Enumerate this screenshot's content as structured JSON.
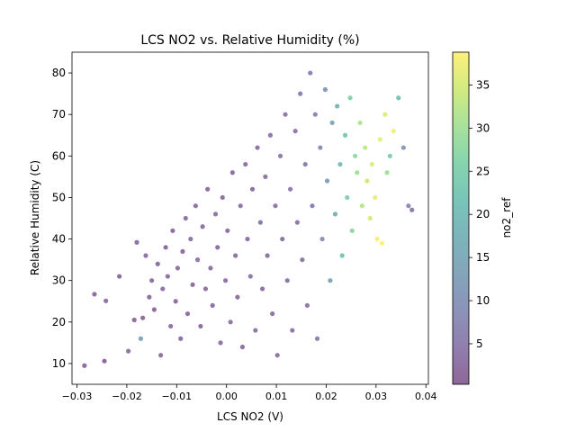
{
  "chart_data": {
    "type": "scatter",
    "title": "LCS NO2 vs. Relative Humidity (%)",
    "xlabel": "LCS NO2 (V)",
    "ylabel": "Relative Humidity (C)",
    "xlim": [
      -0.031,
      0.0405
    ],
    "ylim": [
      5,
      85
    ],
    "xticks": [
      -0.03,
      -0.02,
      -0.01,
      0.0,
      0.01,
      0.02,
      0.03,
      0.04
    ],
    "xtick_labels": [
      "−0.03",
      "−0.02",
      "−0.01",
      "0.00",
      "0.01",
      "0.02",
      "0.03",
      "0.04"
    ],
    "yticks": [
      10,
      20,
      30,
      40,
      50,
      60,
      70,
      80
    ],
    "ytick_labels": [
      "10",
      "20",
      "30",
      "40",
      "50",
      "60",
      "70",
      "80"
    ],
    "grid": false,
    "colormap": "viridis",
    "point_alpha": 0.6,
    "colorbar": {
      "label": "no2_ref",
      "range": [
        0.3,
        38.8
      ],
      "ticks": [
        5,
        10,
        15,
        20,
        25,
        30,
        35
      ],
      "tick_labels": [
        "5",
        "10",
        "15",
        "20",
        "25",
        "30",
        "35"
      ]
    },
    "series": [
      {
        "x": [
          -0.0285,
          -0.0265,
          -0.0245,
          -0.0242,
          -0.0215,
          -0.0197,
          -0.0185,
          -0.018,
          -0.0172,
          -0.0168,
          -0.0162,
          -0.0155,
          -0.015,
          -0.0145,
          -0.0138,
          -0.0132,
          -0.0128,
          -0.0122,
          -0.0118,
          -0.0112,
          -0.0108,
          -0.0102,
          -0.0098,
          -0.0092,
          -0.0088,
          -0.0082,
          -0.0078,
          -0.0072,
          -0.0068,
          -0.0062,
          -0.0058,
          -0.0052,
          -0.0048,
          -0.0042,
          -0.0038,
          -0.0032,
          -0.0028,
          -0.0022,
          -0.0018,
          -0.0012,
          -0.0008,
          -0.0002,
          0.0002,
          0.0008,
          0.0012,
          0.0018,
          0.0022,
          0.0028,
          0.0032,
          0.0038,
          0.0042,
          0.0048,
          0.0052,
          0.0058,
          0.0062,
          0.0068,
          0.0072,
          0.0078,
          0.0082,
          0.0088,
          0.0092,
          0.0098,
          0.0102,
          0.0108,
          0.0112,
          0.0118,
          0.0122,
          0.0128,
          0.0132,
          0.0138,
          0.0142,
          0.0148,
          0.0152,
          0.0158,
          0.0162,
          0.0168,
          0.0172,
          0.0178,
          0.0182,
          0.0188,
          0.0192,
          0.0198,
          0.0202,
          0.0208,
          0.0212,
          0.0218,
          0.0222,
          0.0228,
          0.0232,
          0.0238,
          0.0242,
          0.0248,
          0.0252,
          0.0258,
          0.0262,
          0.0268,
          0.0272,
          0.0278,
          0.0282,
          0.0288,
          0.0292,
          0.0298,
          0.0302,
          0.0308,
          0.0312,
          0.0318,
          0.0322,
          0.0328,
          0.0335,
          0.0345,
          0.0355,
          0.0365,
          0.0372
        ],
        "y": [
          9.5,
          26.7,
          10.6,
          25.1,
          31.0,
          13.0,
          20.5,
          39.2,
          16.0,
          21.0,
          36.0,
          26.0,
          30.0,
          23.0,
          34.0,
          12.0,
          28.0,
          38.0,
          31.0,
          19.0,
          42.0,
          25.0,
          33.0,
          16.0,
          37.0,
          45.0,
          22.0,
          40.0,
          29.0,
          48.0,
          35.0,
          19.0,
          43.0,
          28.0,
          52.0,
          33.0,
          24.0,
          46.0,
          38.0,
          15.0,
          50.0,
          30.0,
          42.0,
          20.0,
          56.0,
          36.0,
          26.0,
          48.0,
          14.0,
          58.0,
          40.0,
          31.0,
          52.0,
          18.0,
          62.0,
          44.0,
          28.0,
          55.0,
          36.0,
          65.0,
          22.0,
          48.0,
          12.0,
          60.0,
          40.0,
          70.0,
          30.0,
          52.0,
          18.0,
          66.0,
          44.0,
          75.0,
          35.0,
          58.0,
          24.0,
          80.0,
          48.0,
          70.0,
          16.0,
          62.0,
          40.0,
          76.0,
          54.0,
          30.0,
          68.0,
          46.0,
          72.0,
          58.0,
          36.0,
          65.0,
          50.0,
          74.0,
          42.0,
          60.0,
          56.0,
          68.0,
          48.0,
          62.0,
          54.0,
          45.0,
          58.0,
          50.0,
          40.0,
          64.0,
          39.0,
          70.0,
          56.0,
          60.0,
          66.0,
          74.0,
          62.0,
          48.0,
          47.0
        ],
        "color_values": [
          1.5,
          2.0,
          1.2,
          2.5,
          1.8,
          3.0,
          2.2,
          2.8,
          14.0,
          2.0,
          3.5,
          2.6,
          3.0,
          2.1,
          2.4,
          2.9,
          3.2,
          2.0,
          2.7,
          3.1,
          2.3,
          2.5,
          3.4,
          2.8,
          2.2,
          3.0,
          2.6,
          3.3,
          2.1,
          2.9,
          3.5,
          2.4,
          3.1,
          2.7,
          2.5,
          3.2,
          2.8,
          3.6,
          2.3,
          3.0,
          2.6,
          3.4,
          2.9,
          3.7,
          2.5,
          3.1,
          2.7,
          3.8,
          2.4,
          3.2,
          2.9,
          4.0,
          2.6,
          3.5,
          3.0,
          4.2,
          2.8,
          3.6,
          3.3,
          4.5,
          3.1,
          3.9,
          3.5,
          4.8,
          3.4,
          4.2,
          3.8,
          5.0,
          3.6,
          4.6,
          4.2,
          5.5,
          4.0,
          5.2,
          4.8,
          6.0,
          5.5,
          7.0,
          6.2,
          8.5,
          9.0,
          10.5,
          12.0,
          13.5,
          15.0,
          17.0,
          19.0,
          20.5,
          22.0,
          23.5,
          25.0,
          26.0,
          27.5,
          28.0,
          30.0,
          31.5,
          32.0,
          33.0,
          34.5,
          35.0,
          36.0,
          37.0,
          38.0,
          36.5,
          38.5,
          35.5,
          30.0,
          25.0,
          37.5,
          22.0,
          12.0,
          8.0,
          5.0
        ]
      }
    ]
  }
}
